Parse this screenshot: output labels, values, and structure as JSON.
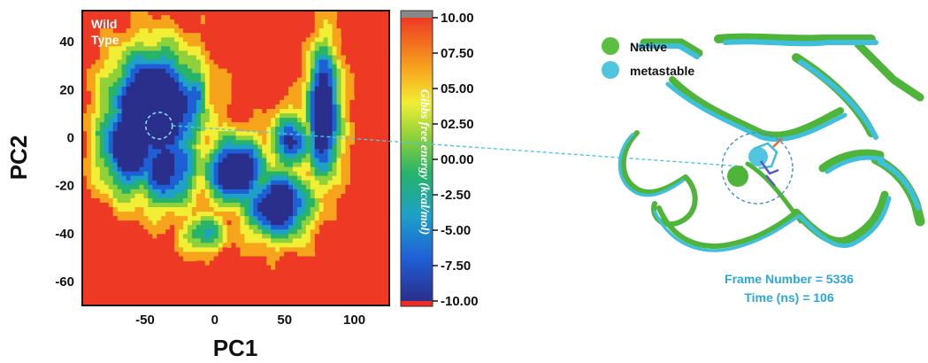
{
  "chart_data": {
    "type": "heatmap",
    "panel_label_lines": [
      "Wild",
      "Type"
    ],
    "xlabel": "PC1",
    "ylabel": "PC2",
    "xlim": [
      -95,
      125
    ],
    "ylim": [
      -70,
      53
    ],
    "xticks": [
      -50,
      0,
      50,
      100
    ],
    "yticks": [
      40,
      20,
      0,
      -20,
      -40,
      -60
    ],
    "colorbar": {
      "label": "Gibbs free energy (kcal/mol)",
      "range": [
        -10.0,
        10.0
      ],
      "ticks": [
        "10.00",
        "07.50",
        "05.00",
        "02.50",
        "00.00",
        "-2.50",
        "-5.00",
        "-7.50",
        "-10.00"
      ],
      "colors": [
        "#2b2f8c",
        "#1f5fd6",
        "#1ea0c8",
        "#27b36a",
        "#8fd13a",
        "#f2ee35",
        "#f7a41d",
        "#ee3a24"
      ]
    },
    "basins": [
      {
        "cx": -43,
        "cy": 12,
        "rx": 40,
        "ry": 30,
        "depth": 1.0
      },
      {
        "cx": -60,
        "cy": -2,
        "rx": 28,
        "ry": 26,
        "depth": 0.9
      },
      {
        "cx": -35,
        "cy": -12,
        "rx": 30,
        "ry": 22,
        "depth": 0.75
      },
      {
        "cx": 15,
        "cy": -14,
        "rx": 28,
        "ry": 18,
        "depth": 0.85
      },
      {
        "cx": 45,
        "cy": -28,
        "rx": 30,
        "ry": 18,
        "depth": 0.85
      },
      {
        "cx": 78,
        "cy": 10,
        "rx": 15,
        "ry": 34,
        "depth": 0.9
      },
      {
        "cx": 55,
        "cy": -2,
        "rx": 20,
        "ry": 16,
        "depth": 0.65
      },
      {
        "cx": -15,
        "cy": 18,
        "rx": 14,
        "ry": 14,
        "depth": 0.6
      },
      {
        "cx": -8,
        "cy": -40,
        "rx": 20,
        "ry": 10,
        "depth": 0.5
      }
    ],
    "marked_state": {
      "pc1": -40,
      "pc2": 5
    }
  },
  "legend": {
    "items": [
      {
        "label": "Native",
        "color": "#5cbf3f"
      },
      {
        "label": "metastable",
        "color": "#4fc6de"
      }
    ]
  },
  "frame_info": {
    "line1": "Frame Number = 5336",
    "line2": "Time (ns) = 106"
  },
  "structure": {
    "native_color": "#4fb53a",
    "metastable_color": "#3fbfdc"
  }
}
